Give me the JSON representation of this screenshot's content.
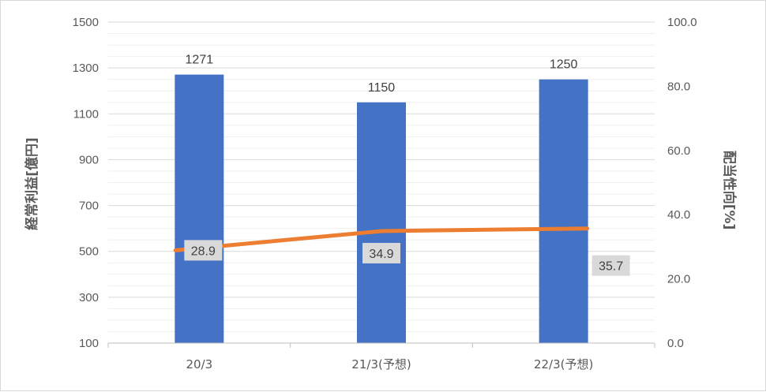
{
  "chart_data": {
    "type": "bar+line",
    "categories": [
      "20/3",
      "21/3(予想)",
      "22/3(予想)"
    ],
    "bar_series": {
      "values": [
        1271,
        1150,
        1250
      ],
      "color": "#4472c4"
    },
    "line_series": {
      "values": [
        28.9,
        34.9,
        35.7
      ],
      "color": "#ed7d31"
    },
    "y_left": {
      "label": "経常利益[億円]",
      "min": 100,
      "max": 1500,
      "ticks": [
        "100",
        "300",
        "500",
        "700",
        "900",
        "1100",
        "1300",
        "1500"
      ]
    },
    "y_right": {
      "label": "配当性向[%]",
      "min": 0,
      "max": 100,
      "ticks": [
        "0.0",
        "20.0",
        "40.0",
        "60.0",
        "80.0",
        "100.0"
      ]
    },
    "grid": true,
    "data_label_bg": "#d9d9d9"
  }
}
